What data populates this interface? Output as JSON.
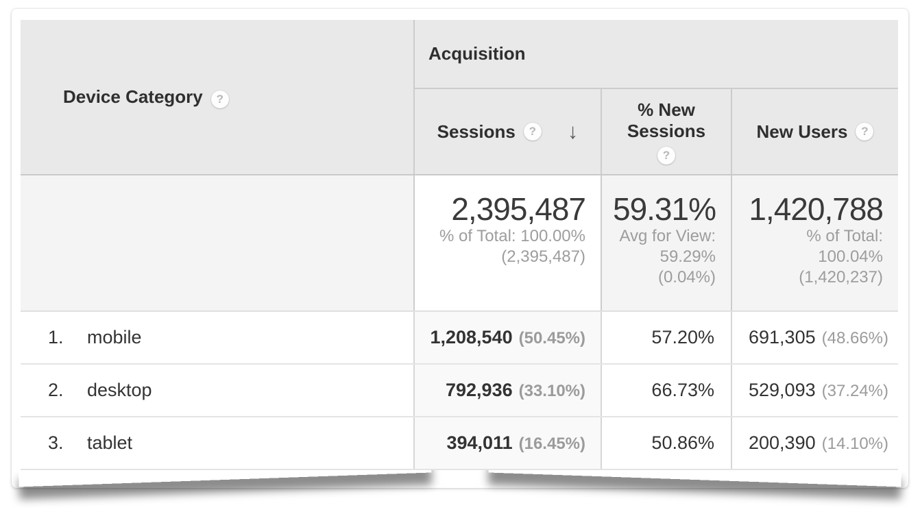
{
  "report": {
    "dimension_column": {
      "label": "Device Category",
      "help": "?"
    },
    "group_header": {
      "label": "Acquisition"
    },
    "metrics": {
      "sessions": {
        "label": "Sessions",
        "help": "?",
        "sort_arrow": "↓",
        "sorted": "descending"
      },
      "new_sessions": {
        "label": "% New Sessions",
        "help": "?"
      },
      "new_users": {
        "label": "New Users",
        "help": "?"
      }
    },
    "summary": {
      "sessions": {
        "value": "2,395,487",
        "line1": "% of Total: 100.00%",
        "line2": "(2,395,487)",
        "line3": ""
      },
      "new_sessions": {
        "value": "59.31%",
        "line1": "Avg for View:",
        "line2": "59.29%",
        "line3": "(0.04%)"
      },
      "new_users": {
        "value": "1,420,788",
        "line1": "% of Total:",
        "line2": "100.04%",
        "line3": "(1,420,237)"
      }
    },
    "rows": [
      {
        "index": "1.",
        "device": "mobile",
        "sessions": "1,208,540",
        "sessions_share": "(50.45%)",
        "pct_new_sessions": "57.20%",
        "new_users": "691,305",
        "new_users_share": "(48.66%)"
      },
      {
        "index": "2.",
        "device": "desktop",
        "sessions": "792,936",
        "sessions_share": "(33.10%)",
        "pct_new_sessions": "66.73%",
        "new_users": "529,093",
        "new_users_share": "(37.24%)"
      },
      {
        "index": "3.",
        "device": "tablet",
        "sessions": "394,011",
        "sessions_share": "(16.45%)",
        "pct_new_sessions": "50.86%",
        "new_users": "200,390",
        "new_users_share": "(14.10%)"
      }
    ]
  },
  "colors": {
    "header_bg": "#e9e9e9",
    "summary_muted_bg": "#f4f4f4",
    "sorted_column_bg": "#f9f9f9",
    "text_primary": "#333333",
    "text_secondary": "#9b9b9b",
    "divider": "#cccccc"
  }
}
